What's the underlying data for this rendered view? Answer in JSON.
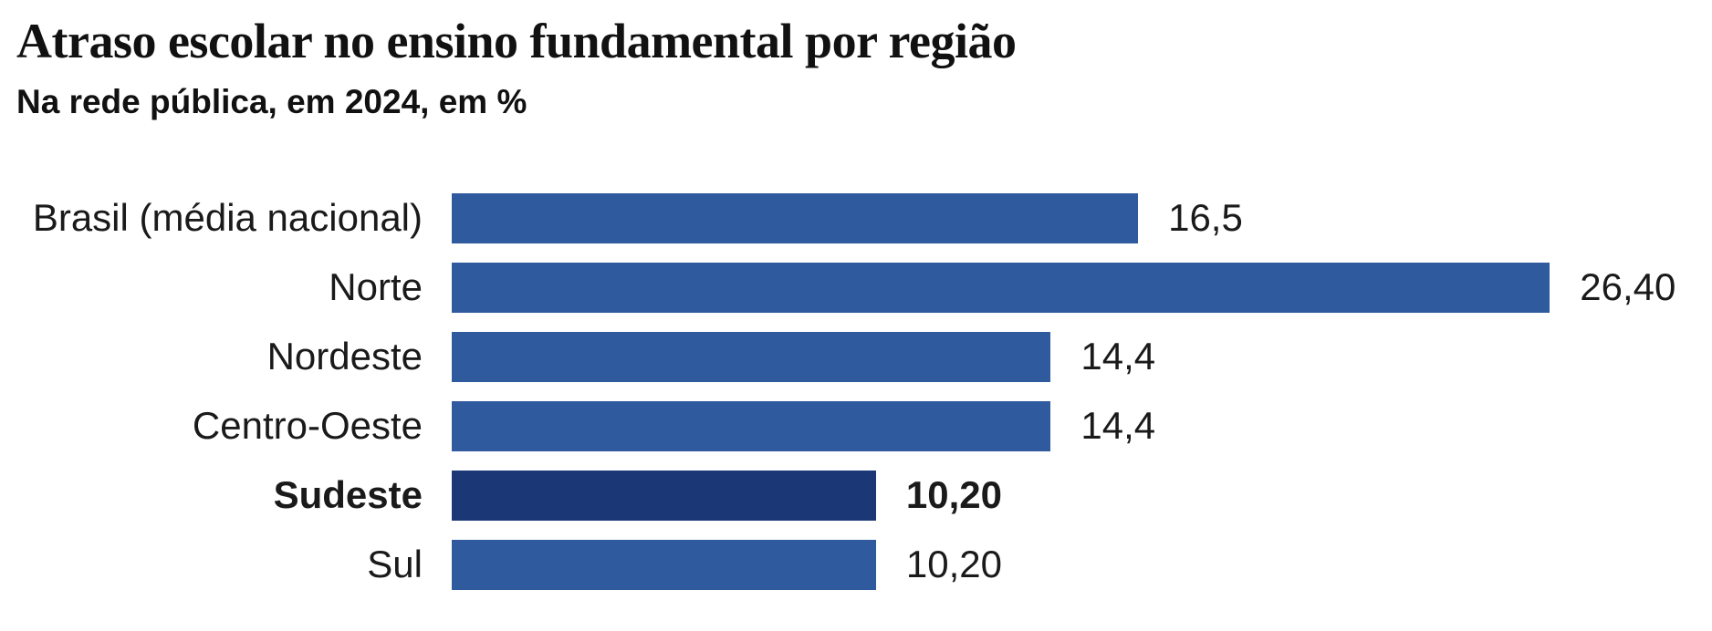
{
  "header": {
    "title": "Atraso escolar no ensino fundamental por região",
    "subtitle": "Na rede pública, em 2024, em %"
  },
  "chart_data": {
    "type": "bar",
    "orientation": "horizontal",
    "title": "Atraso escolar no ensino fundamental por região",
    "subtitle": "Na rede pública, em 2024, em %",
    "unit": "%",
    "xlim": [
      0,
      26.4
    ],
    "grid": false,
    "legend": false,
    "axis_lines": false,
    "categories": [
      "Brasil (média nacional)",
      "Norte",
      "Nordeste",
      "Centro-Oeste",
      "Sudeste",
      "Sul"
    ],
    "values": [
      16.5,
      26.4,
      14.4,
      14.4,
      10.2,
      10.2
    ],
    "value_labels": [
      "16,5",
      "26,40",
      "14,4",
      "14,4",
      "10,20",
      "10,20"
    ],
    "highlight_index": 4,
    "highlighted_category": "Sudeste",
    "colors": {
      "bar": "#2f5b9e",
      "bar_highlight": "#1c3775",
      "text": "#1a1a1a",
      "background": "#ffffff"
    }
  }
}
